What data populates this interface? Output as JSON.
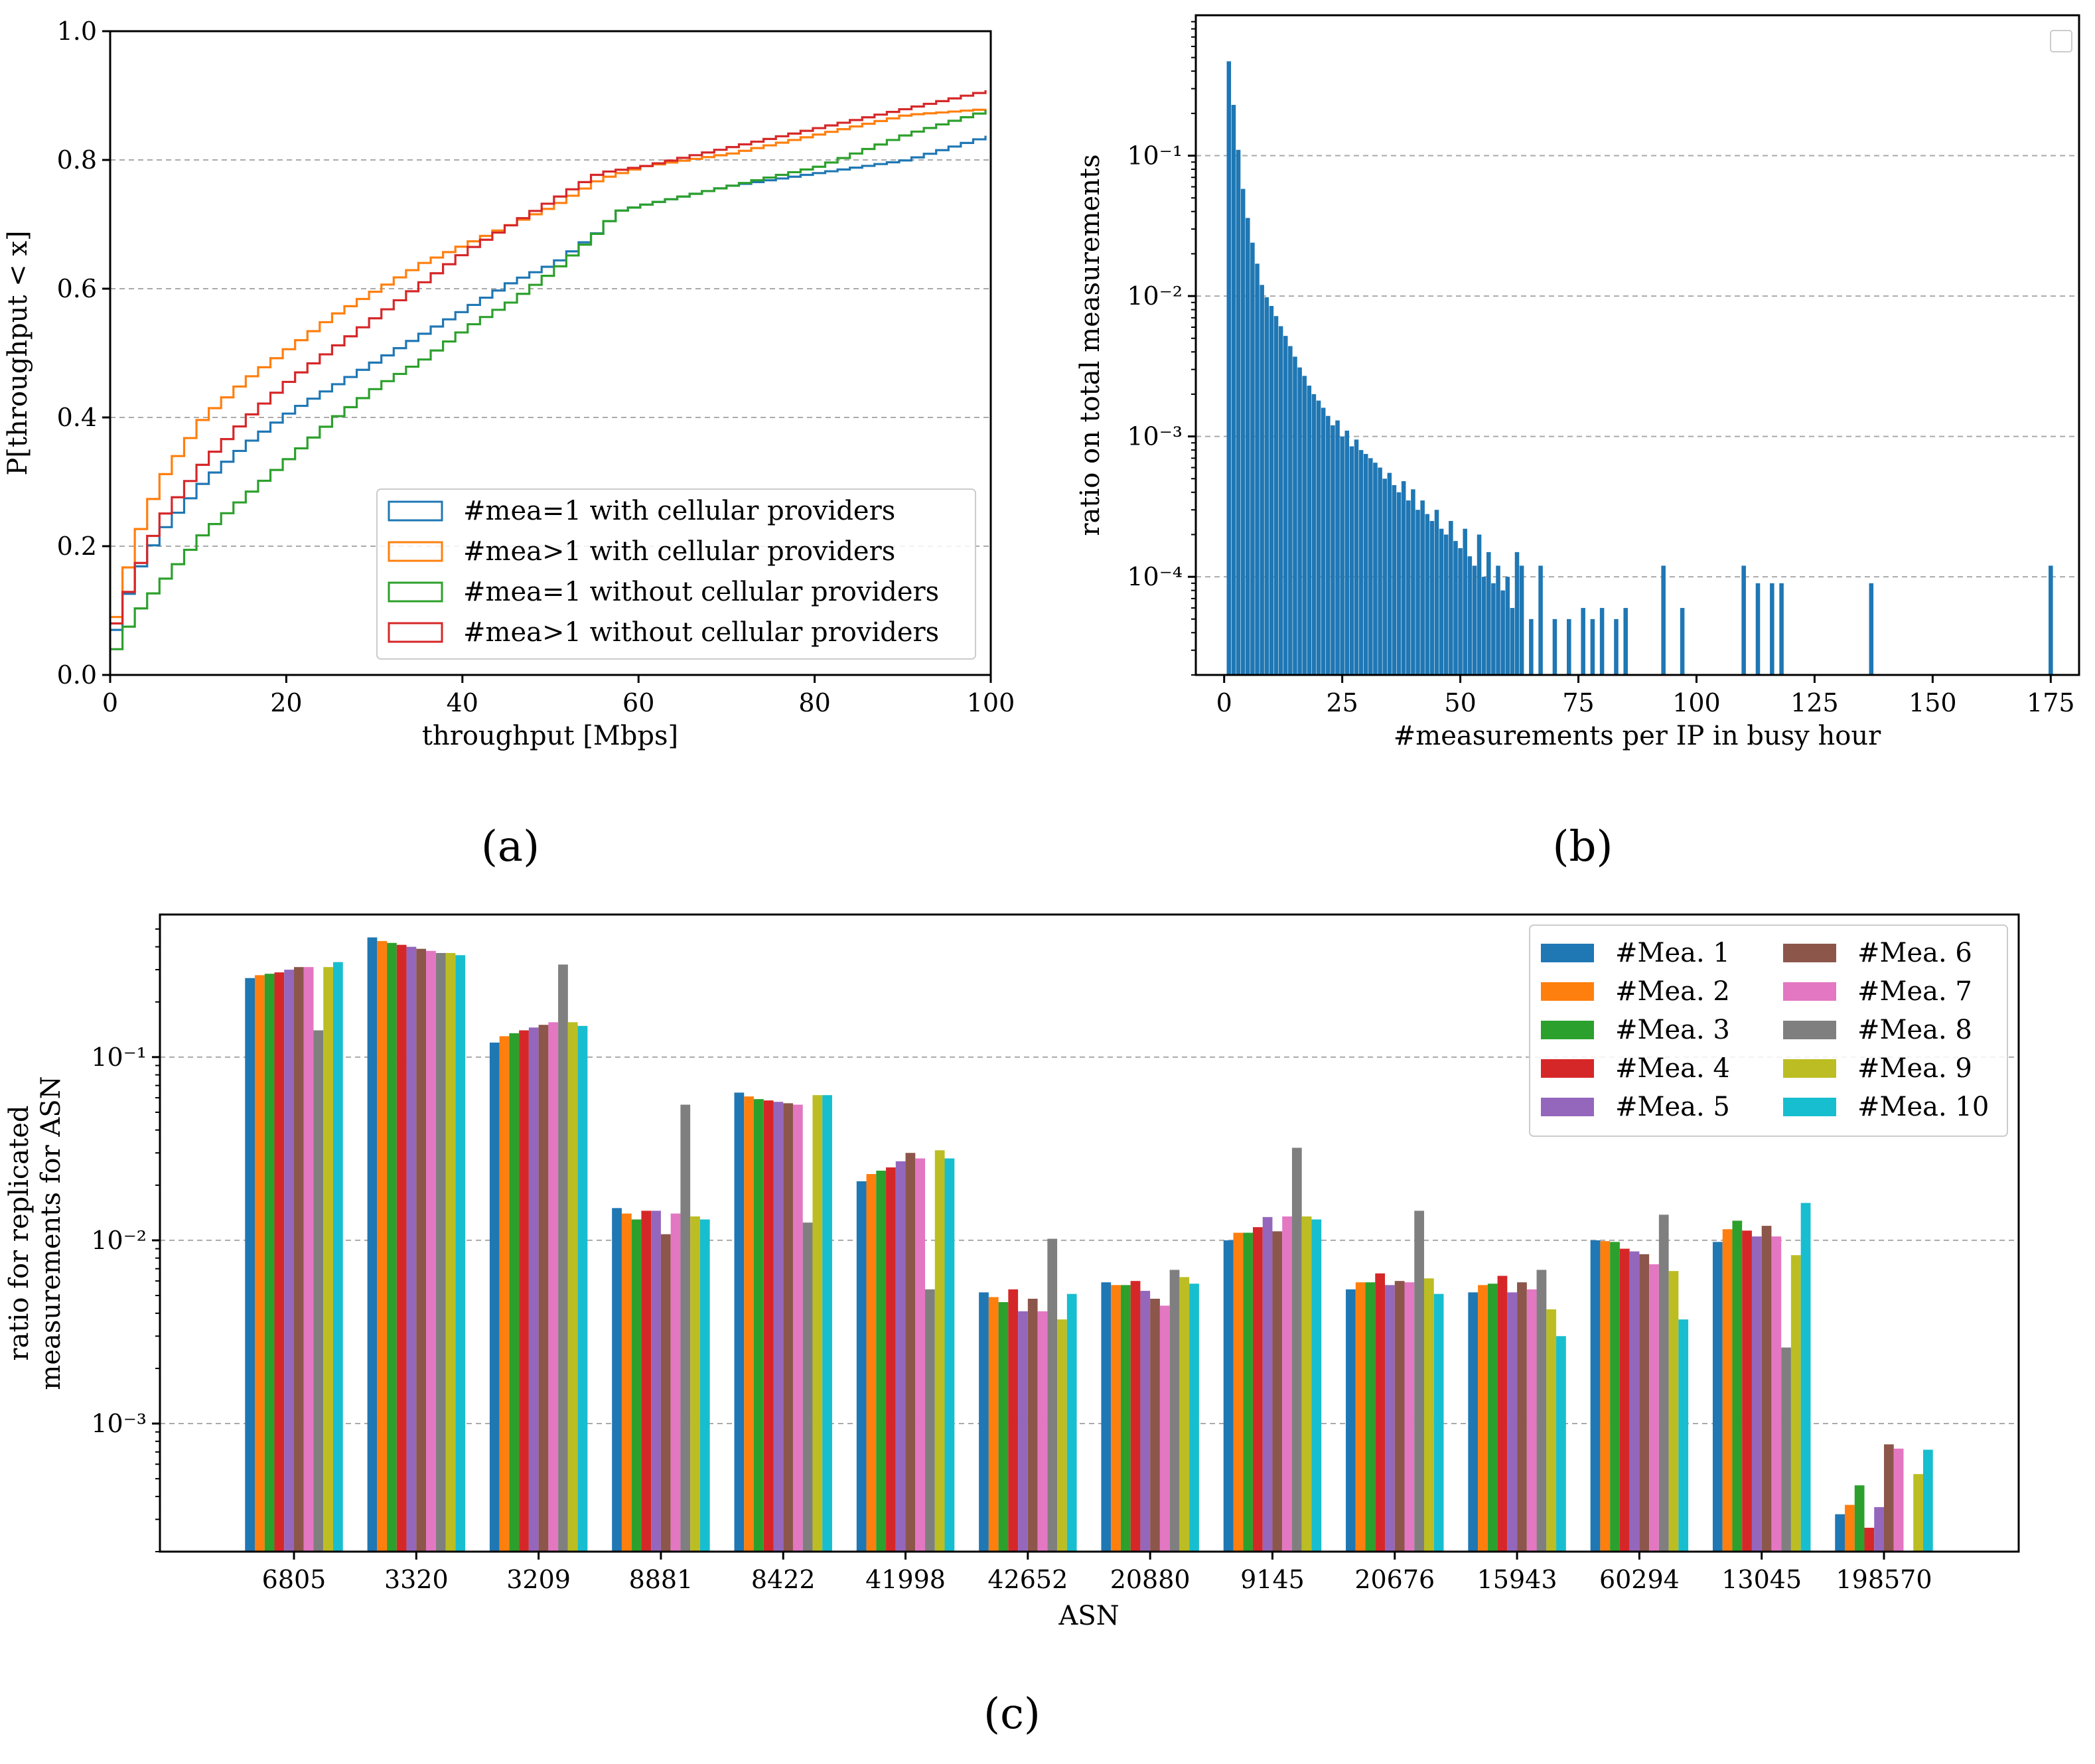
{
  "panel_labels": [
    "(a)",
    "(b)",
    "(c)"
  ],
  "colors": {
    "blue": "#1f77b4",
    "orange": "#ff7f0e",
    "green": "#2ca02c",
    "red": "#d62728",
    "purple": "#9467bd",
    "brown": "#8c564b",
    "pink": "#e377c2",
    "gray": "#7f7f7f",
    "olive": "#bcbd22",
    "cyan": "#17becf"
  },
  "chart_data": [
    {
      "type": "line",
      "panel": "(a)",
      "xlabel": "throughput [Mbps]",
      "ylabel": "P[throughput < x]",
      "xlim": [
        0,
        100
      ],
      "ylim": [
        0,
        1.0
      ],
      "xticks": [
        "0",
        "20",
        "40",
        "60",
        "80",
        "100"
      ],
      "yticks": [
        "0.0",
        "0.2",
        "0.4",
        "0.6",
        "0.8",
        "1.0"
      ],
      "grid": "horizontal dashed",
      "legend_position": "lower-right",
      "series": [
        {
          "name": "#mea=1 with cellular providers",
          "color": "#1f77b4",
          "x": [
            0,
            2,
            5,
            10,
            15,
            20,
            25,
            30,
            35,
            40,
            45,
            50,
            55,
            57,
            60,
            70,
            80,
            90,
            100
          ],
          "y": [
            0.07,
            0.15,
            0.22,
            0.3,
            0.36,
            0.41,
            0.45,
            0.49,
            0.53,
            0.57,
            0.61,
            0.64,
            0.69,
            0.72,
            0.73,
            0.76,
            0.78,
            0.8,
            0.84
          ]
        },
        {
          "name": "#mea>1 with cellular providers",
          "color": "#ff7f0e",
          "x": [
            0,
            2,
            5,
            10,
            15,
            20,
            25,
            30,
            35,
            40,
            45,
            50,
            55,
            60,
            70,
            80,
            90,
            100
          ],
          "y": [
            0.09,
            0.2,
            0.3,
            0.4,
            0.46,
            0.51,
            0.56,
            0.6,
            0.64,
            0.67,
            0.7,
            0.73,
            0.77,
            0.79,
            0.81,
            0.84,
            0.87,
            0.88
          ]
        },
        {
          "name": "#mea=1 without cellular providers",
          "color": "#2ca02c",
          "x": [
            0,
            2,
            5,
            10,
            15,
            20,
            25,
            30,
            35,
            40,
            45,
            50,
            55,
            57,
            60,
            70,
            80,
            90,
            100
          ],
          "y": [
            0.04,
            0.09,
            0.14,
            0.22,
            0.28,
            0.34,
            0.4,
            0.45,
            0.49,
            0.54,
            0.58,
            0.63,
            0.69,
            0.72,
            0.73,
            0.76,
            0.79,
            0.84,
            0.88
          ]
        },
        {
          "name": "#mea>1 without cellular providers",
          "color": "#d62728",
          "x": [
            0,
            2,
            5,
            10,
            15,
            20,
            25,
            30,
            35,
            40,
            45,
            50,
            55,
            60,
            70,
            80,
            90,
            100
          ],
          "y": [
            0.08,
            0.15,
            0.24,
            0.33,
            0.4,
            0.46,
            0.51,
            0.56,
            0.61,
            0.66,
            0.7,
            0.74,
            0.78,
            0.79,
            0.82,
            0.85,
            0.88,
            0.91
          ]
        }
      ]
    },
    {
      "type": "bar",
      "panel": "(b)",
      "xlabel": "#measurements per IP in busy hour",
      "ylabel": "ratio on total measurements",
      "yscale": "log",
      "xlim": [
        -6,
        181
      ],
      "ylim": [
        2e-05,
        1.0
      ],
      "xticks": [
        "0",
        "25",
        "50",
        "75",
        "100",
        "125",
        "150",
        "175"
      ],
      "yticks": [
        "10⁻¹",
        "10⁻²",
        "10⁻³",
        "10⁻⁴"
      ],
      "grid": "horizontal dashed",
      "legend": "empty box at top-right",
      "x": [
        1,
        2,
        3,
        4,
        5,
        6,
        7,
        8,
        9,
        10,
        11,
        12,
        13,
        14,
        15,
        16,
        17,
        18,
        19,
        20,
        21,
        22,
        23,
        24,
        25,
        26,
        27,
        28,
        29,
        30,
        31,
        32,
        33,
        34,
        35,
        36,
        37,
        38,
        39,
        40,
        41,
        42,
        43,
        44,
        45,
        46,
        47,
        48,
        49,
        50,
        51,
        52,
        53,
        54,
        55,
        56,
        57,
        58,
        59,
        60,
        61,
        62,
        63,
        65,
        67,
        70,
        73,
        76,
        78,
        80,
        83,
        85,
        93,
        97,
        110,
        113,
        116,
        118,
        137,
        175
      ],
      "values": [
        0.47,
        0.23,
        0.11,
        0.058,
        0.036,
        0.024,
        0.017,
        0.012,
        0.0098,
        0.0085,
        0.0072,
        0.0061,
        0.0052,
        0.0044,
        0.0037,
        0.0031,
        0.0027,
        0.0023,
        0.002,
        0.0018,
        0.0016,
        0.0014,
        0.0012,
        0.0013,
        0.001,
        0.0011,
        0.00085,
        0.00095,
        0.0008,
        0.00075,
        0.0007,
        0.00065,
        0.0006,
        0.0005,
        0.00055,
        0.00045,
        0.0004,
        0.00048,
        0.00035,
        0.00042,
        0.0003,
        0.00035,
        0.00028,
        0.00025,
        0.0003,
        0.00022,
        0.0002,
        0.00025,
        0.00018,
        0.00016,
        0.00022,
        0.00014,
        0.00012,
        0.0002,
        0.0001,
        0.00015,
        9e-05,
        0.00012,
        8e-05,
        0.0001,
        6e-05,
        0.00015,
        0.00012,
        5e-05,
        0.00012,
        5e-05,
        5e-05,
        6e-05,
        5e-05,
        6e-05,
        5e-05,
        6e-05,
        0.00012,
        6e-05,
        0.00012,
        9e-05,
        9e-05,
        9e-05,
        9e-05,
        0.00012
      ]
    },
    {
      "type": "bar",
      "panel": "(c)",
      "xlabel": "ASN",
      "ylabel": [
        "ratio for replicated",
        "measurements for ASN"
      ],
      "yscale": "log",
      "ylim": [
        0.0002,
        0.6
      ],
      "yticks": [
        "10⁻¹",
        "10⁻²",
        "10⁻³"
      ],
      "grid": "horizontal dashed",
      "legend_position": "top-right",
      "categories": [
        "6805",
        "3320",
        "3209",
        "8881",
        "8422",
        "41998",
        "42652",
        "20880",
        "9145",
        "20676",
        "15943",
        "60294",
        "13045",
        "198570"
      ],
      "series": [
        {
          "name": "#Mea. 1",
          "color": "#1f77b4",
          "values": [
            0.27,
            0.45,
            0.12,
            0.015,
            0.064,
            0.021,
            0.0052,
            0.0059,
            0.01,
            0.0054,
            0.0052,
            0.01,
            0.0098,
            0.00032
          ]
        },
        {
          "name": "#Mea. 2",
          "color": "#ff7f0e",
          "values": [
            0.28,
            0.43,
            0.13,
            0.014,
            0.061,
            0.023,
            0.0049,
            0.0057,
            0.011,
            0.0059,
            0.0057,
            0.0099,
            0.0115,
            0.00036
          ]
        },
        {
          "name": "#Mea. 3",
          "color": "#2ca02c",
          "values": [
            0.285,
            0.42,
            0.135,
            0.013,
            0.059,
            0.024,
            0.0046,
            0.0057,
            0.011,
            0.0059,
            0.0058,
            0.0098,
            0.0128,
            0.00046
          ]
        },
        {
          "name": "#Mea. 4",
          "color": "#d62728",
          "values": [
            0.29,
            0.41,
            0.14,
            0.0145,
            0.058,
            0.025,
            0.0054,
            0.006,
            0.0118,
            0.0066,
            0.0064,
            0.009,
            0.0113,
            0.00027
          ]
        },
        {
          "name": "#Mea. 5",
          "color": "#9467bd",
          "values": [
            0.3,
            0.4,
            0.145,
            0.0145,
            0.057,
            0.027,
            0.0041,
            0.0053,
            0.0134,
            0.0057,
            0.0052,
            0.0087,
            0.0105,
            0.00035
          ]
        },
        {
          "name": "#Mea. 6",
          "color": "#8c564b",
          "values": [
            0.31,
            0.39,
            0.15,
            0.0108,
            0.056,
            0.03,
            0.0048,
            0.0048,
            0.0112,
            0.006,
            0.0059,
            0.0084,
            0.012,
            0.00077
          ]
        },
        {
          "name": "#Mea. 7",
          "color": "#e377c2",
          "values": [
            0.31,
            0.38,
            0.155,
            0.014,
            0.055,
            0.028,
            0.0041,
            0.0044,
            0.0135,
            0.0059,
            0.0054,
            0.0074,
            0.0105,
            0.00073
          ]
        },
        {
          "name": "#Mea. 8",
          "color": "#7f7f7f",
          "values": [
            0.14,
            0.37,
            0.32,
            0.055,
            0.0125,
            0.0054,
            0.0102,
            0.0069,
            0.032,
            0.0145,
            0.0069,
            0.0138,
            0.0026,
            null
          ]
        },
        {
          "name": "#Mea. 9",
          "color": "#bcbd22",
          "values": [
            0.31,
            0.37,
            0.155,
            0.0135,
            0.062,
            0.031,
            0.0037,
            0.0063,
            0.0135,
            0.0062,
            0.0042,
            0.0068,
            0.0083,
            0.00053
          ]
        },
        {
          "name": "#Mea. 10",
          "color": "#17becf",
          "values": [
            0.33,
            0.36,
            0.148,
            0.013,
            0.062,
            0.028,
            0.0051,
            0.0058,
            0.013,
            0.0051,
            0.003,
            0.0037,
            0.016,
            0.00072
          ]
        }
      ]
    }
  ]
}
